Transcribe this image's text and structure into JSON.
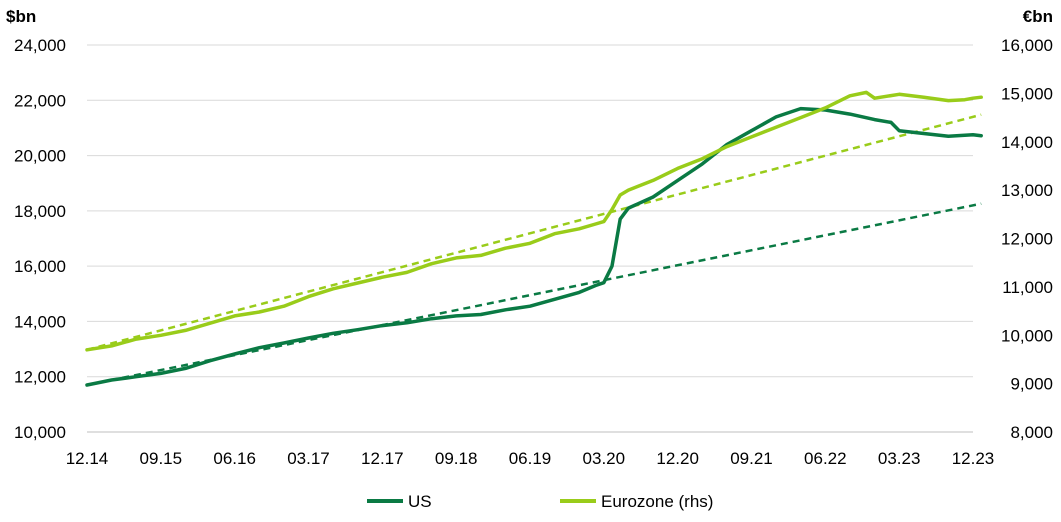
{
  "chart_data": {
    "type": "line",
    "left_axis_unit": "$bn",
    "right_axis_unit": "€bn",
    "y_left": {
      "lim": [
        10000,
        24000
      ],
      "ticks": [
        10000,
        12000,
        14000,
        16000,
        18000,
        20000,
        22000,
        24000
      ],
      "tick_labels": [
        "10,000",
        "12,000",
        "14,000",
        "16,000",
        "18,000",
        "20,000",
        "22,000",
        "24,000"
      ]
    },
    "y_right": {
      "lim": [
        8000,
        16000
      ],
      "ticks": [
        8000,
        9000,
        10000,
        11000,
        12000,
        13000,
        14000,
        15000,
        16000
      ],
      "tick_labels": [
        "8,000",
        "9,000",
        "10,000",
        "11,000",
        "12,000",
        "13,000",
        "14,000",
        "15,000",
        "16,000"
      ]
    },
    "x": {
      "lim": [
        "12.14",
        "12.23"
      ],
      "tick_labels": [
        "12.14",
        "09.15",
        "06.16",
        "03.17",
        "12.17",
        "09.18",
        "06.19",
        "03.20",
        "12.20",
        "09.21",
        "06.22",
        "03.23",
        "12.23"
      ]
    },
    "grid": "horizontal",
    "legend": {
      "position": "bottom",
      "entries": [
        "US",
        "Eurozone (rhs)"
      ]
    },
    "colors": {
      "us": "#0a7a44",
      "eurozone": "#99cc1a",
      "grid": "#d9d9d9"
    },
    "series": [
      {
        "name": "US",
        "axis": "left",
        "style": "solid",
        "points": [
          [
            "12.14",
            11700
          ],
          [
            "03.15",
            11880
          ],
          [
            "06.15",
            12000
          ],
          [
            "09.15",
            12120
          ],
          [
            "12.15",
            12300
          ],
          [
            "03.16",
            12580
          ],
          [
            "06.16",
            12820
          ],
          [
            "09.16",
            13050
          ],
          [
            "12.16",
            13220
          ],
          [
            "03.17",
            13400
          ],
          [
            "06.17",
            13570
          ],
          [
            "09.17",
            13700
          ],
          [
            "12.17",
            13850
          ],
          [
            "03.18",
            13950
          ],
          [
            "06.18",
            14100
          ],
          [
            "09.18",
            14200
          ],
          [
            "12.18",
            14250
          ],
          [
            "03.19",
            14420
          ],
          [
            "06.19",
            14550
          ],
          [
            "09.19",
            14800
          ],
          [
            "12.19",
            15050
          ],
          [
            "02.20",
            15300
          ],
          [
            "03.20",
            15400
          ],
          [
            "04.20",
            16000
          ],
          [
            "05.20",
            17700
          ],
          [
            "06.20",
            18100
          ],
          [
            "09.20",
            18500
          ],
          [
            "12.20",
            19100
          ],
          [
            "03.21",
            19700
          ],
          [
            "06.21",
            20400
          ],
          [
            "09.21",
            20900
          ],
          [
            "12.21",
            21400
          ],
          [
            "03.22",
            21700
          ],
          [
            "06.22",
            21650
          ],
          [
            "09.22",
            21500
          ],
          [
            "12.22",
            21300
          ],
          [
            "02.23",
            21200
          ],
          [
            "03.23",
            20900
          ],
          [
            "06.23",
            20800
          ],
          [
            "09.23",
            20700
          ],
          [
            "12.23",
            20750
          ],
          [
            "01.24",
            20720
          ]
        ]
      },
      {
        "name": "Eurozone (rhs)",
        "axis": "right",
        "style": "solid",
        "points": [
          [
            "12.14",
            9700
          ],
          [
            "03.15",
            9780
          ],
          [
            "06.15",
            9920
          ],
          [
            "09.15",
            10000
          ],
          [
            "12.15",
            10100
          ],
          [
            "03.16",
            10250
          ],
          [
            "06.16",
            10400
          ],
          [
            "09.16",
            10480
          ],
          [
            "12.16",
            10600
          ],
          [
            "03.17",
            10800
          ],
          [
            "06.17",
            10960
          ],
          [
            "09.17",
            11080
          ],
          [
            "12.17",
            11200
          ],
          [
            "03.18",
            11300
          ],
          [
            "06.18",
            11480
          ],
          [
            "09.18",
            11600
          ],
          [
            "12.18",
            11650
          ],
          [
            "03.19",
            11800
          ],
          [
            "06.19",
            11900
          ],
          [
            "09.19",
            12100
          ],
          [
            "12.19",
            12200
          ],
          [
            "02.20",
            12300
          ],
          [
            "03.20",
            12350
          ],
          [
            "04.20",
            12600
          ],
          [
            "05.20",
            12900
          ],
          [
            "06.20",
            13000
          ],
          [
            "09.20",
            13200
          ],
          [
            "12.20",
            13450
          ],
          [
            "03.21",
            13650
          ],
          [
            "06.21",
            13900
          ],
          [
            "09.21",
            14100
          ],
          [
            "12.21",
            14300
          ],
          [
            "03.22",
            14500
          ],
          [
            "06.22",
            14700
          ],
          [
            "09.22",
            14950
          ],
          [
            "11.22",
            15020
          ],
          [
            "12.22",
            14900
          ],
          [
            "03.23",
            14980
          ],
          [
            "06.23",
            14920
          ],
          [
            "09.23",
            14850
          ],
          [
            "11.23",
            14870
          ],
          [
            "12.23",
            14900
          ],
          [
            "01.24",
            14920
          ]
        ]
      },
      {
        "name": "",
        "axis": "left",
        "style": "dashed",
        "color": "us",
        "points": [
          [
            "12.14",
            11700
          ],
          [
            "01.24",
            18260
          ]
        ]
      },
      {
        "name": "",
        "axis": "right",
        "style": "dashed",
        "color": "eurozone",
        "points": [
          [
            "12.14",
            9700
          ],
          [
            "01.24",
            14560
          ]
        ]
      }
    ]
  }
}
